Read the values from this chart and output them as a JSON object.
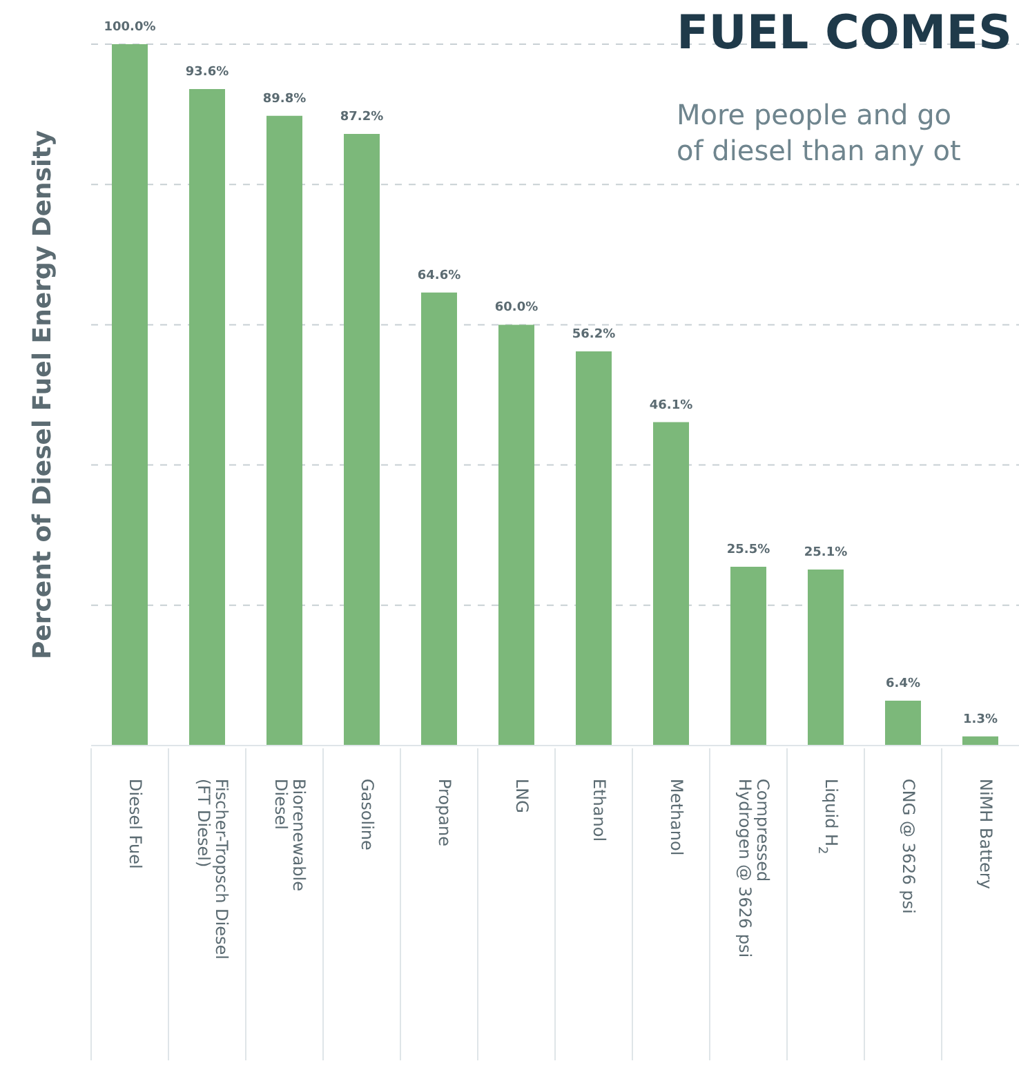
{
  "chart_data": {
    "type": "bar",
    "title": "FUEL COMES",
    "subtitle": "More people and go\nof diesel than any ot",
    "ylabel": "Percent of Diesel Fuel Energy Density",
    "categories": [
      "Diesel Fuel",
      "Fischer-Tropsch Diesel\n(FT Diesel)",
      "Biorenewable\nDiesel",
      "Gasoline",
      "Propane",
      "LNG",
      "Ethanol",
      "Methanol",
      "Compressed\nHydrogen @ 3626 psi",
      "Liquid H$_{2}$",
      "CNG @ 3626 psi",
      "NiMH Battery"
    ],
    "values": [
      100.0,
      93.6,
      89.8,
      87.2,
      64.6,
      60.0,
      56.2,
      46.1,
      25.5,
      25.1,
      6.4,
      1.3
    ],
    "value_labels": [
      "100.0%",
      "93.6%",
      "89.8%",
      "87.2%",
      "64.6%",
      "60.0%",
      "56.2%",
      "46.1%",
      "25.5%",
      "25.1%",
      "6.4%",
      "1.3%"
    ],
    "color": "#7cb87a",
    "ylim": [
      0,
      100
    ],
    "yticks": [
      {
        "value": 20,
        "label": null
      },
      {
        "value": 40,
        "label": null
      },
      {
        "value": 60,
        "label": null
      },
      {
        "value": 80,
        "label": null
      },
      {
        "value": 100,
        "label": null
      }
    ],
    "grid": "y",
    "tick_labels": "x"
  }
}
